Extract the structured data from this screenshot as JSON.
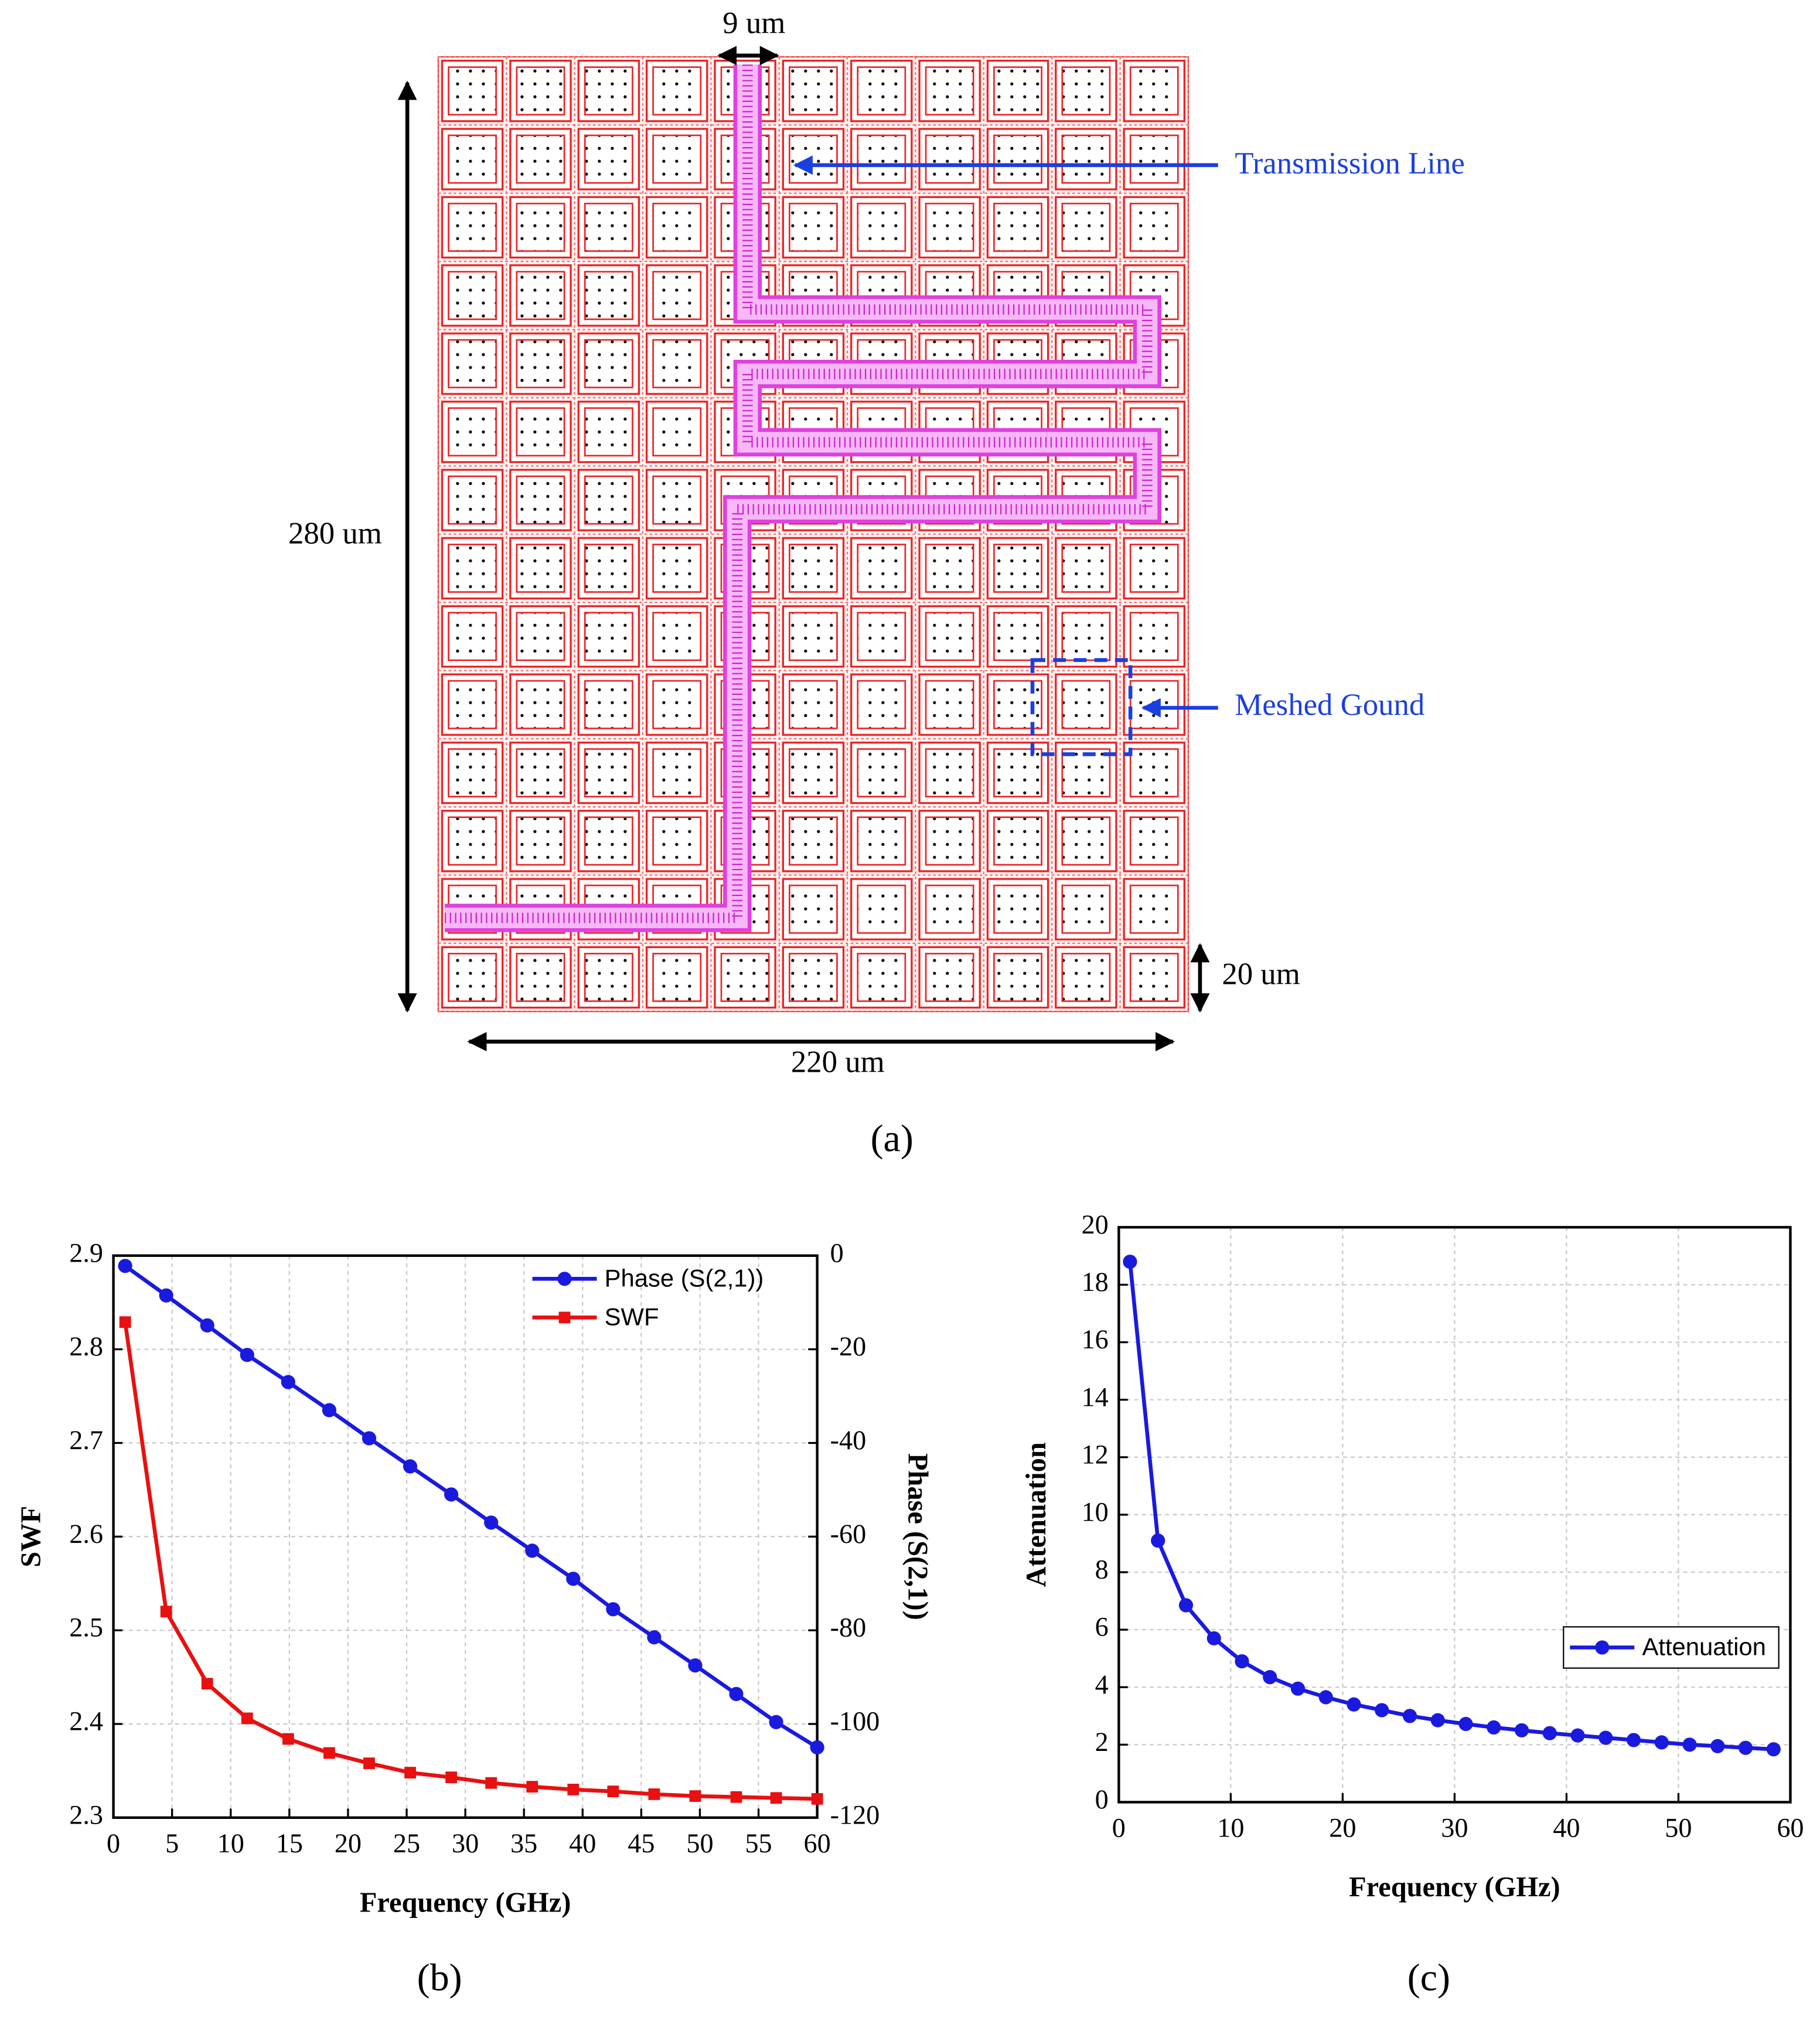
{
  "diagram": {
    "labels": {
      "pitch": "9 um",
      "line": "Transmission Line",
      "height": "280 um",
      "ground": "Meshed Gound",
      "cell": "20 um",
      "width": "220 um"
    },
    "caption": "(a)"
  },
  "chart_data": [
    {
      "type": "line",
      "caption": "(b)",
      "xlabel": "Frequency (GHz)",
      "ylabel": "SWF",
      "y2label": "Phase (S(2,1))",
      "xlim": [
        0,
        60
      ],
      "xticks": [
        0,
        5,
        10,
        15,
        20,
        25,
        30,
        35,
        40,
        45,
        50,
        55,
        60
      ],
      "ylim": [
        2.3,
        2.9
      ],
      "yticks": [
        2.3,
        2.4,
        2.5,
        2.6,
        2.7,
        2.8,
        2.9
      ],
      "y2lim": [
        -120,
        0
      ],
      "y2ticks": [
        -120,
        -100,
        -80,
        -60,
        -40,
        -20,
        0
      ],
      "grid": true,
      "legend": "upper right",
      "legend_frame": false,
      "x": [
        1,
        4.5,
        8,
        11.4,
        14.9,
        18.4,
        21.8,
        25.3,
        28.8,
        32.2,
        35.7,
        39.2,
        42.6,
        46.1,
        49.6,
        53.1,
        56.5,
        60
      ],
      "series": [
        {
          "name": "Phase (S(2,1))",
          "color": "#1a1adf",
          "marker": "circle",
          "axis": "y2",
          "values": [
            -2.2,
            -8.5,
            -14.9,
            -21.2,
            -27,
            -33,
            -39,
            -45,
            -51,
            -57,
            -63,
            -69,
            -75.5,
            -81.5,
            -87.5,
            -93.6,
            -99.6,
            -105
          ]
        },
        {
          "name": "SWF",
          "color": "#e81010",
          "marker": "square",
          "values": [
            2.829,
            2.52,
            2.443,
            2.406,
            2.384,
            2.369,
            2.358,
            2.348,
            2.343,
            2.337,
            2.333,
            2.33,
            2.328,
            2.325,
            2.323,
            2.322,
            2.321,
            2.32
          ]
        }
      ]
    },
    {
      "type": "line",
      "caption": "(c)",
      "xlabel": "Frequency (GHz)",
      "ylabel": "Attenuation",
      "xlim": [
        0,
        60
      ],
      "xticks": [
        0,
        10,
        20,
        30,
        40,
        50,
        60
      ],
      "ylim": [
        0,
        20
      ],
      "yticks": [
        0,
        2,
        4,
        6,
        8,
        10,
        12,
        14,
        16,
        18,
        20
      ],
      "grid": true,
      "legend": "right",
      "legend_frame": true,
      "x": [
        1,
        3.5,
        6,
        8.5,
        11,
        13.5,
        16,
        18.5,
        21,
        23.5,
        26,
        28.5,
        31,
        33.5,
        36,
        38.5,
        41,
        43.5,
        46,
        48.5,
        51,
        53.5,
        56,
        58.5
      ],
      "series": [
        {
          "name": "Attenuation",
          "color": "#1a1adf",
          "marker": "circle",
          "values": [
            18.8,
            9.1,
            6.85,
            5.7,
            4.9,
            4.35,
            3.95,
            3.65,
            3.4,
            3.2,
            3.0,
            2.85,
            2.72,
            2.6,
            2.5,
            2.4,
            2.32,
            2.24,
            2.16,
            2.08,
            2.0,
            1.95,
            1.89,
            1.84
          ]
        }
      ]
    }
  ]
}
